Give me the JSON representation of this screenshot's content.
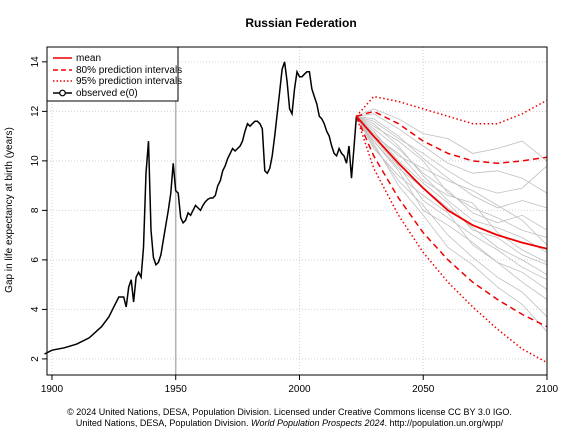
{
  "chart_data": {
    "type": "line",
    "title": "Russian Federation",
    "xlabel": "",
    "ylabel": "Gap in life expectancy at birth (years)",
    "xlim": [
      1898,
      2100
    ],
    "ylim": [
      2,
      14
    ],
    "xticks": [
      1900,
      1950,
      2000,
      2050,
      2100
    ],
    "yticks": [
      2,
      4,
      6,
      8,
      10,
      12,
      14
    ],
    "grid": true,
    "legend_position": "top-left",
    "vertical_marker_x": 1950,
    "legend": {
      "mean": "mean",
      "pi80": "80% prediction intervals",
      "pi95": "95% prediction intervals",
      "observed": "observed e(0)"
    },
    "series": [
      {
        "name": "observed e(0)",
        "color": "#000000",
        "x": [
          1897,
          1900,
          1905,
          1910,
          1915,
          1920,
          1923,
          1925,
          1927,
          1929,
          1930,
          1931,
          1932,
          1933,
          1934,
          1935,
          1936,
          1937,
          1938,
          1939,
          1940,
          1941,
          1942,
          1943,
          1944,
          1945,
          1946,
          1947,
          1948,
          1949,
          1950,
          1951,
          1952,
          1953,
          1954,
          1955,
          1956,
          1957,
          1958,
          1959,
          1960,
          1961,
          1962,
          1963,
          1964,
          1965,
          1966,
          1967,
          1968,
          1969,
          1970,
          1971,
          1972,
          1973,
          1974,
          1975,
          1976,
          1977,
          1978,
          1979,
          1980,
          1981,
          1982,
          1983,
          1984,
          1985,
          1986,
          1987,
          1988,
          1989,
          1990,
          1991,
          1992,
          1993,
          1994,
          1995,
          1996,
          1997,
          1998,
          1999,
          2000,
          2001,
          2002,
          2003,
          2004,
          2005,
          2006,
          2007,
          2008,
          2009,
          2010,
          2011,
          2012,
          2013,
          2014,
          2015,
          2016,
          2017,
          2018,
          2019,
          2020,
          2021,
          2022,
          2023
        ],
        "y": [
          2.2,
          2.35,
          2.45,
          2.6,
          2.85,
          3.3,
          3.7,
          4.1,
          4.5,
          4.5,
          4.1,
          4.9,
          5.2,
          4.3,
          5.3,
          5.5,
          5.3,
          6.5,
          9.5,
          10.8,
          7.2,
          6.1,
          5.8,
          5.9,
          6.2,
          6.8,
          7.4,
          8.0,
          8.7,
          9.9,
          8.8,
          8.7,
          7.7,
          7.5,
          7.6,
          7.9,
          7.8,
          8.0,
          8.2,
          8.1,
          8.0,
          8.2,
          8.35,
          8.45,
          8.5,
          8.5,
          8.6,
          9.0,
          9.2,
          9.6,
          9.8,
          10.1,
          10.3,
          10.5,
          10.4,
          10.5,
          10.6,
          10.8,
          11.2,
          11.5,
          11.4,
          11.5,
          11.6,
          11.6,
          11.5,
          11.3,
          9.6,
          9.5,
          9.7,
          10.2,
          11.0,
          11.9,
          12.8,
          13.7,
          14.0,
          13.2,
          12.1,
          11.9,
          12.9,
          13.6,
          13.4,
          13.4,
          13.5,
          13.6,
          13.6,
          12.9,
          12.6,
          12.3,
          11.8,
          11.7,
          11.5,
          11.2,
          11.0,
          10.6,
          10.3,
          10.2,
          10.5,
          10.3,
          10.2,
          9.9,
          10.6,
          9.3,
          10.5,
          11.8
        ]
      },
      {
        "name": "mean",
        "color": "#ee0000",
        "x": [
          2023,
          2030,
          2040,
          2050,
          2060,
          2070,
          2080,
          2090,
          2100
        ],
        "y": [
          11.8,
          11.0,
          9.9,
          8.9,
          8.0,
          7.4,
          7.0,
          6.7,
          6.45
        ]
      },
      {
        "name": "80% prediction intervals",
        "color": "#ee0000",
        "upper": {
          "x": [
            2023,
            2030,
            2040,
            2050,
            2060,
            2070,
            2080,
            2090,
            2100
          ],
          "y": [
            11.8,
            12.0,
            11.5,
            10.8,
            10.3,
            10.0,
            9.9,
            10.0,
            10.15
          ]
        },
        "lower": {
          "x": [
            2023,
            2030,
            2040,
            2050,
            2060,
            2070,
            2080,
            2090,
            2100
          ],
          "y": [
            11.8,
            10.2,
            8.5,
            7.1,
            6.0,
            5.1,
            4.4,
            3.8,
            3.3
          ]
        }
      },
      {
        "name": "95% prediction intervals",
        "color": "#ee0000",
        "upper": {
          "x": [
            2023,
            2030,
            2040,
            2050,
            2060,
            2070,
            2080,
            2090,
            2100
          ],
          "y": [
            11.8,
            12.6,
            12.4,
            12.1,
            11.8,
            11.5,
            11.5,
            11.9,
            12.45
          ]
        },
        "lower": {
          "x": [
            2023,
            2030,
            2040,
            2050,
            2060,
            2070,
            2080,
            2090,
            2100
          ],
          "y": [
            11.8,
            9.7,
            7.8,
            6.3,
            5.1,
            4.1,
            3.2,
            2.4,
            1.85
          ]
        }
      }
    ],
    "trajectories": {
      "color": "#c0c0c0",
      "x": [
        2023,
        2030,
        2040,
        2050,
        2060,
        2070,
        2080,
        2090,
        2100
      ],
      "paths": [
        [
          11.8,
          11.6,
          10.9,
          10.3,
          9.6,
          9.0,
          8.7,
          8.9,
          9.8
        ],
        [
          11.8,
          11.2,
          10.0,
          9.1,
          8.3,
          7.2,
          6.9,
          6.2,
          5.8
        ],
        [
          11.8,
          10.8,
          9.6,
          8.0,
          7.4,
          6.7,
          5.9,
          5.1,
          4.4
        ],
        [
          11.8,
          11.9,
          11.3,
          10.6,
          9.9,
          9.5,
          9.6,
          9.3,
          8.7
        ],
        [
          11.8,
          10.7,
          9.0,
          7.8,
          6.5,
          5.8,
          4.9,
          4.2,
          3.1
        ],
        [
          11.8,
          11.4,
          10.8,
          10.0,
          8.7,
          8.1,
          7.7,
          7.2,
          6.9
        ],
        [
          11.8,
          11.0,
          10.3,
          9.2,
          8.6,
          8.3,
          7.1,
          6.4,
          5.9
        ],
        [
          11.8,
          10.5,
          9.4,
          8.6,
          7.9,
          6.6,
          5.9,
          5.5,
          4.8
        ],
        [
          11.8,
          12.1,
          11.7,
          11.1,
          10.9,
          10.3,
          10.5,
          10.8,
          10.0
        ],
        [
          11.8,
          11.3,
          10.5,
          9.5,
          8.8,
          7.9,
          7.5,
          7.8,
          7.2
        ],
        [
          11.8,
          10.9,
          9.8,
          8.4,
          7.7,
          7.0,
          6.4,
          5.7,
          5.2
        ],
        [
          11.8,
          11.7,
          11.0,
          10.1,
          9.3,
          8.6,
          8.1,
          8.4,
          8.1
        ],
        [
          11.8,
          10.6,
          9.2,
          8.2,
          7.0,
          6.1,
          5.3,
          4.7,
          3.7
        ],
        [
          11.8,
          11.1,
          10.2,
          9.7,
          9.2,
          8.8,
          8.2,
          7.6,
          6.6
        ],
        [
          11.8,
          11.5,
          10.6,
          9.4,
          8.4,
          7.6,
          7.3,
          6.9,
          6.3
        ],
        [
          11.8,
          10.8,
          9.7,
          8.9,
          8.1,
          7.3,
          6.5,
          6.0,
          5.4
        ]
      ]
    }
  },
  "footer": {
    "line1": "© 2024 United Nations, DESA, Population Division. Licensed under Creative Commons license CC BY 3.0 IGO.",
    "line2_prefix": "United Nations, DESA, Population Division. ",
    "line2_italic": "World Population Prospects 2024",
    "line2_suffix": ". http://population.un.org/wpp/"
  }
}
